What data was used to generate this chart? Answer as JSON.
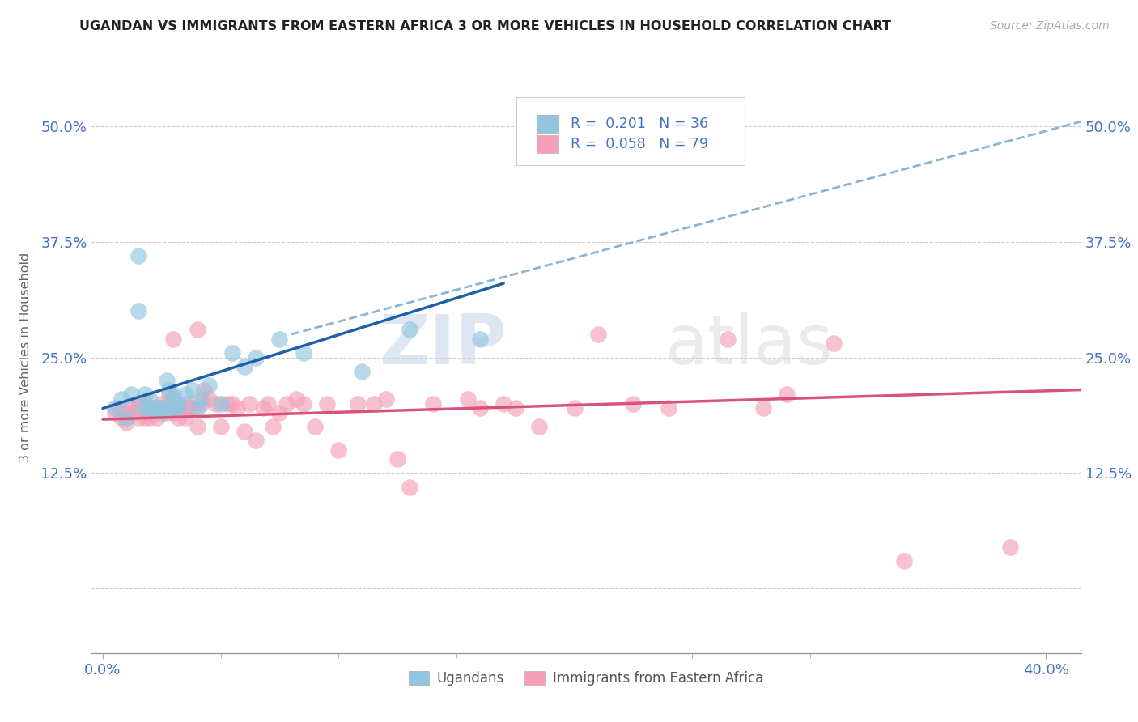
{
  "title": "UGANDAN VS IMMIGRANTS FROM EASTERN AFRICA 3 OR MORE VEHICLES IN HOUSEHOLD CORRELATION CHART",
  "source_text": "Source: ZipAtlas.com",
  "ylabel": "3 or more Vehicles in Household",
  "xlim": [
    -0.005,
    0.415
  ],
  "ylim": [
    -0.07,
    0.57
  ],
  "x_ticks_major": [
    0.0,
    0.4
  ],
  "x_ticks_minor": [
    0.05,
    0.1,
    0.15,
    0.2,
    0.25,
    0.3,
    0.35
  ],
  "y_ticks": [
    0.0,
    0.125,
    0.25,
    0.375,
    0.5
  ],
  "x_tick_labels_major": [
    "0.0%",
    "40.0%"
  ],
  "y_tick_labels": [
    "",
    "12.5%",
    "25.0%",
    "37.5%",
    "50.0%"
  ],
  "legend_R1": "R =  0.201",
  "legend_N1": "N = 36",
  "legend_R2": "R =  0.058",
  "legend_N2": "N = 79",
  "color_ugandan": "#92c5de",
  "color_eastern_africa": "#f4a0b8",
  "color_line_ugandan": "#1f5fa6",
  "color_line_eastern_africa": "#d9527a",
  "color_trend_dashed": "#8ab4d4",
  "watermark_zip": "ZIP",
  "watermark_atlas": "atlas",
  "background_color": "#ffffff",
  "ugandan_x": [
    0.005,
    0.008,
    0.01,
    0.012,
    0.015,
    0.015,
    0.017,
    0.018,
    0.02,
    0.02,
    0.022,
    0.022,
    0.025,
    0.025,
    0.025,
    0.027,
    0.028,
    0.03,
    0.03,
    0.03,
    0.032,
    0.032,
    0.035,
    0.038,
    0.04,
    0.042,
    0.045,
    0.05,
    0.055,
    0.06,
    0.065,
    0.075,
    0.085,
    0.11,
    0.13,
    0.16
  ],
  "ugandan_y": [
    0.195,
    0.205,
    0.185,
    0.21,
    0.3,
    0.36,
    0.195,
    0.21,
    0.205,
    0.195,
    0.195,
    0.195,
    0.195,
    0.195,
    0.19,
    0.225,
    0.215,
    0.21,
    0.205,
    0.195,
    0.2,
    0.195,
    0.21,
    0.215,
    0.195,
    0.205,
    0.22,
    0.2,
    0.255,
    0.24,
    0.25,
    0.27,
    0.255,
    0.235,
    0.28,
    0.27
  ],
  "eastern_x": [
    0.005,
    0.007,
    0.008,
    0.01,
    0.01,
    0.012,
    0.013,
    0.015,
    0.015,
    0.015,
    0.017,
    0.018,
    0.018,
    0.02,
    0.02,
    0.02,
    0.022,
    0.022,
    0.023,
    0.025,
    0.025,
    0.027,
    0.027,
    0.028,
    0.03,
    0.03,
    0.03,
    0.032,
    0.032,
    0.033,
    0.035,
    0.035,
    0.035,
    0.037,
    0.038,
    0.04,
    0.04,
    0.042,
    0.043,
    0.045,
    0.048,
    0.05,
    0.053,
    0.055,
    0.057,
    0.06,
    0.062,
    0.065,
    0.068,
    0.07,
    0.072,
    0.075,
    0.078,
    0.082,
    0.085,
    0.09,
    0.095,
    0.1,
    0.108,
    0.115,
    0.12,
    0.125,
    0.13,
    0.14,
    0.155,
    0.16,
    0.17,
    0.175,
    0.185,
    0.2,
    0.21,
    0.225,
    0.24,
    0.265,
    0.28,
    0.29,
    0.31,
    0.34,
    0.385
  ],
  "eastern_y": [
    0.19,
    0.195,
    0.185,
    0.19,
    0.18,
    0.195,
    0.19,
    0.2,
    0.185,
    0.195,
    0.195,
    0.185,
    0.2,
    0.195,
    0.19,
    0.185,
    0.195,
    0.195,
    0.185,
    0.2,
    0.195,
    0.195,
    0.19,
    0.21,
    0.27,
    0.195,
    0.19,
    0.185,
    0.195,
    0.195,
    0.2,
    0.195,
    0.185,
    0.195,
    0.195,
    0.28,
    0.175,
    0.2,
    0.215,
    0.205,
    0.2,
    0.175,
    0.2,
    0.2,
    0.195,
    0.17,
    0.2,
    0.16,
    0.195,
    0.2,
    0.175,
    0.19,
    0.2,
    0.205,
    0.2,
    0.175,
    0.2,
    0.15,
    0.2,
    0.2,
    0.205,
    0.14,
    0.11,
    0.2,
    0.205,
    0.195,
    0.2,
    0.195,
    0.175,
    0.195,
    0.275,
    0.2,
    0.195,
    0.27,
    0.195,
    0.21,
    0.265,
    0.03,
    0.045
  ],
  "blue_line_x": [
    0.0,
    0.17
  ],
  "blue_line_y": [
    0.195,
    0.33
  ],
  "pink_line_x": [
    0.0,
    0.415
  ],
  "pink_line_y": [
    0.183,
    0.215
  ],
  "dashed_line_x": [
    0.08,
    0.415
  ],
  "dashed_line_y": [
    0.275,
    0.505
  ]
}
